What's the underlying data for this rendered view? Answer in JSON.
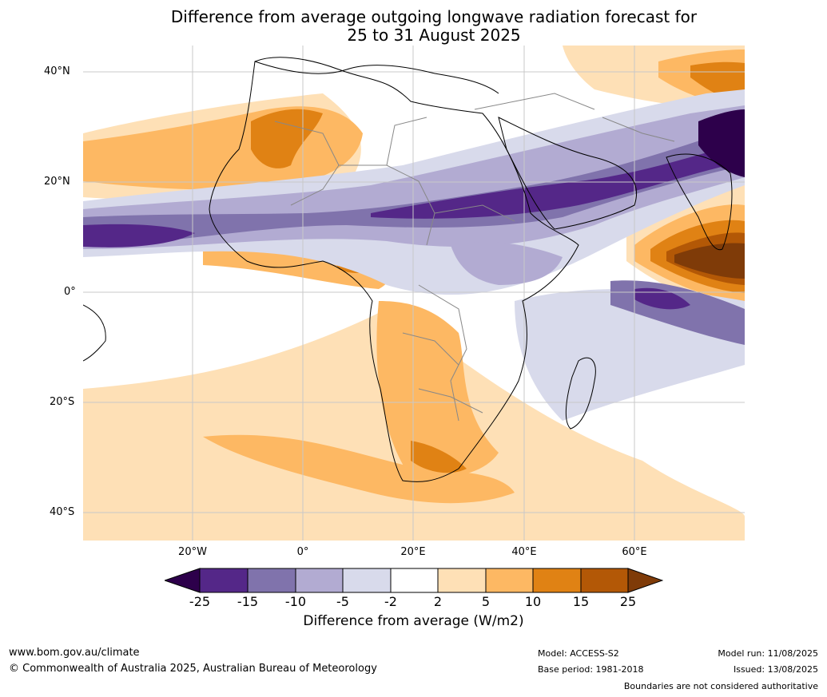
{
  "title_line1": "Difference from average outgoing longwave radiation forecast for",
  "title_line2": "25 to 31 August 2025",
  "lat_labels": [
    "40°N",
    "20°N",
    "0°",
    "20°S",
    "40°S"
  ],
  "lon_labels": [
    "20°W",
    "0°",
    "20°E",
    "40°E",
    "60°E"
  ],
  "colorbar": {
    "ticks": [
      "-25",
      "-15",
      "-10",
      "-5",
      "-2",
      "2",
      "5",
      "10",
      "15",
      "25"
    ],
    "colors": [
      "#2d004b",
      "#542788",
      "#8073ac",
      "#b2abd2",
      "#d8daeb",
      "#ffffff",
      "#fee0b6",
      "#fdb863",
      "#e08214",
      "#b35806",
      "#7f3b08"
    ],
    "label": "Difference from average (W/m2)"
  },
  "footer": {
    "url": "www.bom.gov.au/climate",
    "copyright": "© Commonwealth of Australia 2025, Australian Bureau of Meteorology",
    "model": "Model: ACCESS-S2",
    "base_period": "Base period: 1981-2018",
    "model_run": "Model run: 11/08/2025",
    "issued": "Issued: 13/08/2025",
    "disclaimer": "Boundaries are not considered authoritative"
  }
}
